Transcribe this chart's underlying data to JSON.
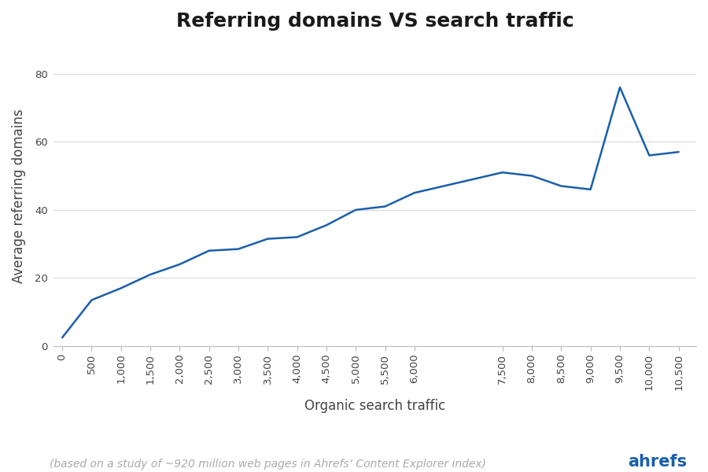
{
  "title": "Referring domains VS search traffic",
  "xlabel": "Organic search traffic",
  "ylabel": "Average referring domains",
  "footnote": "(based on a study of ~920 million web pages in Ahrefs’ Content Explorer index)",
  "ahrefs_label": "ahrefs",
  "line_color": "#1a5fa8",
  "line_width": 1.8,
  "background_color": "#ffffff",
  "x_data": [
    0,
    500,
    1000,
    1500,
    2000,
    2500,
    3000,
    3500,
    4000,
    4500,
    5000,
    5500,
    6000,
    6500,
    7500,
    8000,
    8500,
    9000,
    9500,
    10000,
    10500
  ],
  "y_data": [
    2.5,
    13.5,
    17,
    21,
    24,
    28,
    28.5,
    31.5,
    32,
    35.5,
    40,
    41,
    45,
    47,
    51,
    50,
    47,
    46,
    76,
    56,
    57
  ],
  "xlim": [
    -150,
    10800
  ],
  "ylim": [
    0,
    88
  ],
  "yticks": [
    0,
    20,
    40,
    60,
    80
  ],
  "xtick_values": [
    0,
    500,
    1000,
    1500,
    2000,
    2500,
    3000,
    3500,
    4000,
    4500,
    5000,
    5500,
    6000,
    7500,
    8000,
    8500,
    9000,
    9500,
    10000,
    10500
  ],
  "xtick_labels": [
    "0",
    "500",
    "1,000",
    "1,500",
    "2,000",
    "2,500",
    "3,000",
    "3,500",
    "4,000",
    "4,500",
    "5,000",
    "5,500",
    "6,000",
    "7,500",
    "8,000",
    "8,500",
    "9,000",
    "9,500",
    "10,000",
    "10,500"
  ],
  "grid_color": "#d8d8d8",
  "title_fontsize": 18,
  "axis_label_fontsize": 12,
  "tick_fontsize": 9.5,
  "footnote_fontsize": 10,
  "ahrefs_fontsize": 15
}
